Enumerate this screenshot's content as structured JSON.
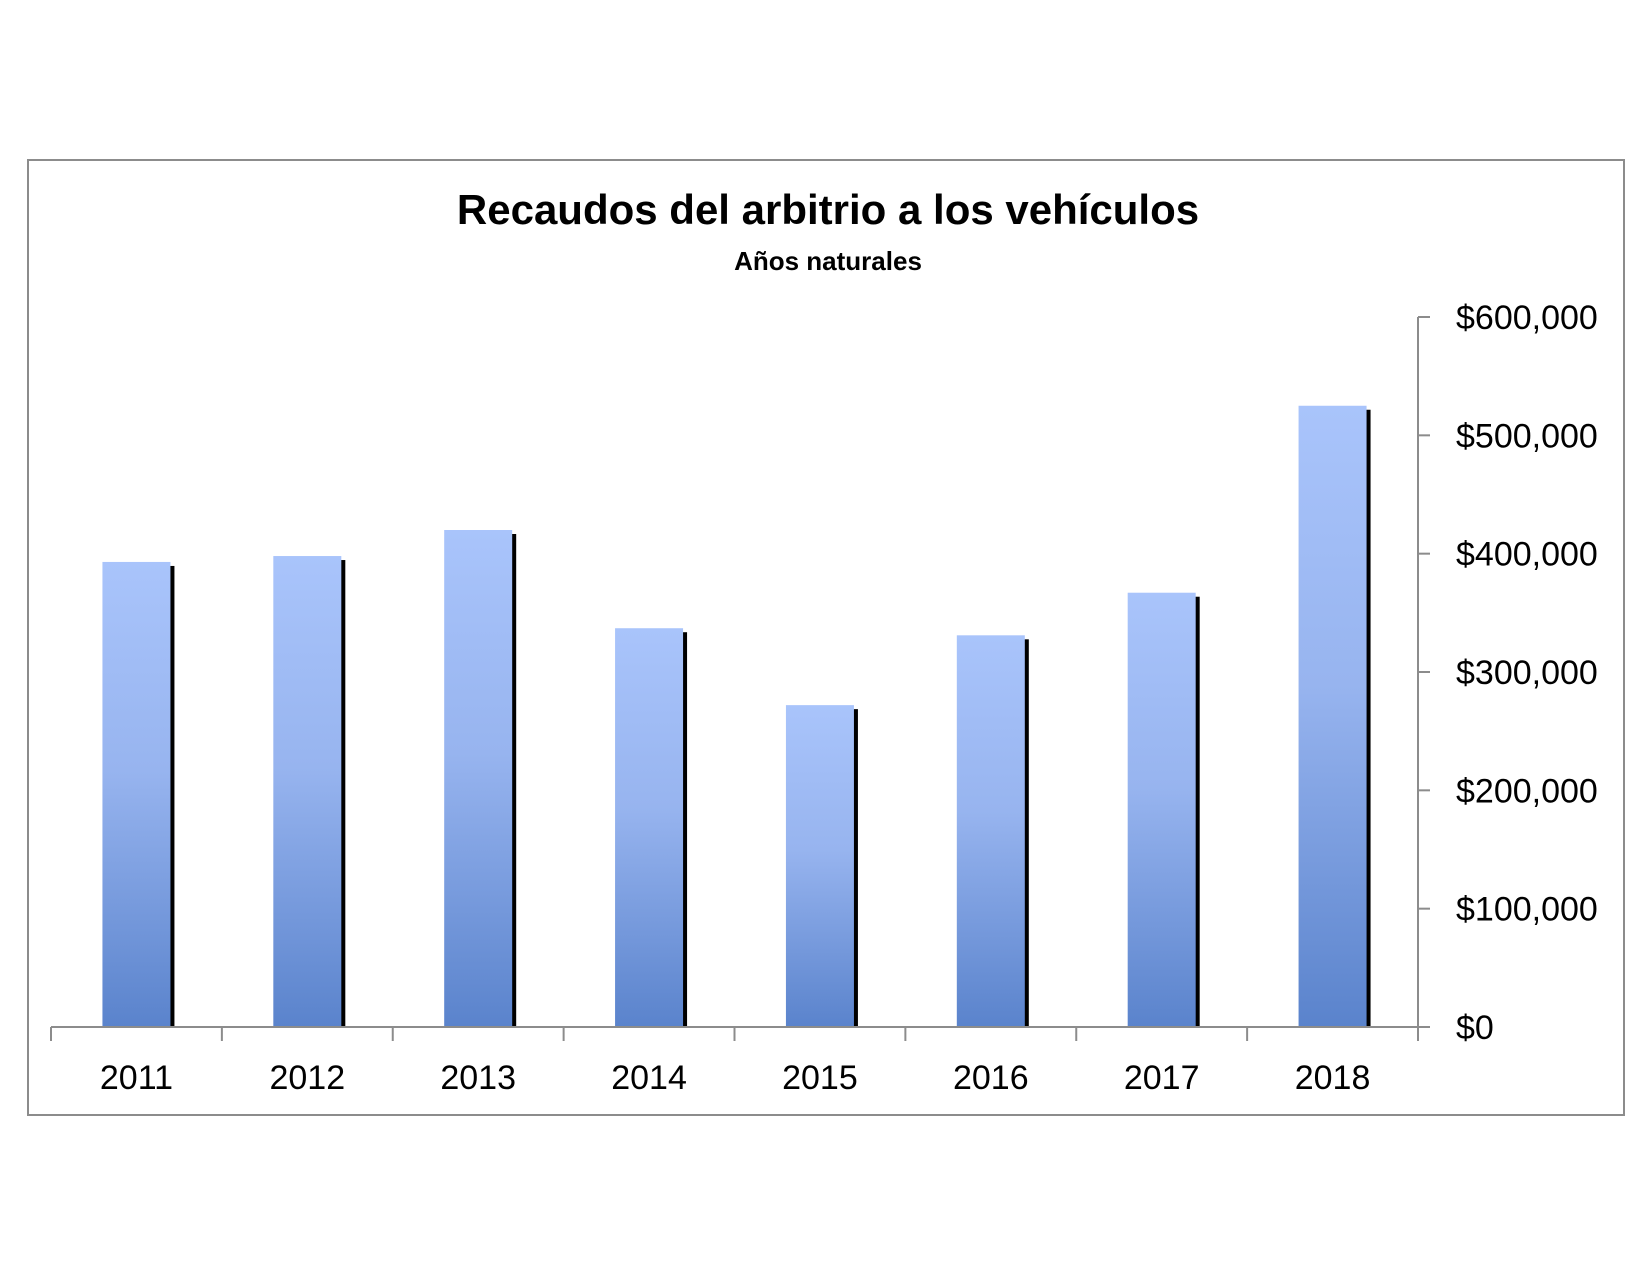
{
  "chart_data": {
    "type": "bar",
    "title": "Recaudos del arbitrio a los vehículos",
    "subtitle": "Años naturales",
    "xlabel": "",
    "ylabel": "",
    "categories": [
      "2011",
      "2012",
      "2013",
      "2014",
      "2015",
      "2016",
      "2017",
      "2018"
    ],
    "values": [
      393000,
      398000,
      420000,
      337000,
      272000,
      331000,
      367000,
      525000
    ],
    "ylim": [
      0,
      600000
    ],
    "yticks": [
      0,
      100000,
      200000,
      300000,
      400000,
      500000,
      600000
    ],
    "ytick_labels": [
      "$0",
      "$100,000",
      "$200,000",
      "$300,000",
      "$400,000",
      "$500,000",
      "$600,000"
    ],
    "y_axis_side": "right",
    "grid": false,
    "legend": "none",
    "colors": {
      "bar_top": "#a9c4fb",
      "bar_mid": "#97b4ef",
      "bar_bottom": "#5a83cc",
      "bar_shadow": "#000000",
      "axis": "#8c8c8c",
      "frame": "#8c8c8c"
    }
  }
}
